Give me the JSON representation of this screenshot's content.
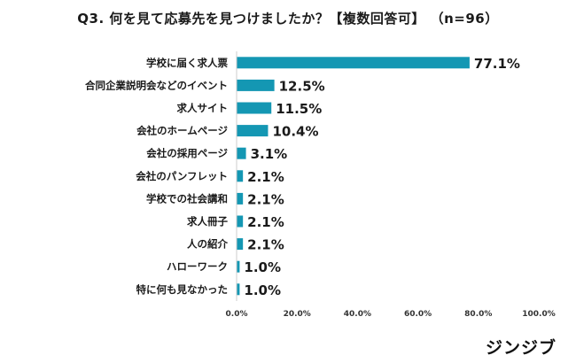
{
  "chart_data": {
    "type": "bar",
    "orientation": "horizontal",
    "title": "Q3. 何を見て応募先を見つけましたか？【複数回答可】 （n=96）",
    "categories": [
      "学校に届く求人票",
      "合同企業説明会などのイベント",
      "求人サイト",
      "会社のホームページ",
      "会社の採用ページ",
      "会社のパンフレット",
      "学校での社会講和",
      "求人冊子",
      "人の紹介",
      "ハローワーク",
      "特に何も見なかった"
    ],
    "values": [
      77.1,
      12.5,
      11.5,
      10.4,
      3.1,
      2.1,
      2.1,
      2.1,
      2.1,
      1.0,
      1.0
    ],
    "value_labels": [
      "77.1%",
      "12.5%",
      "11.5%",
      "10.4%",
      "3.1%",
      "2.1%",
      "2.1%",
      "2.1%",
      "2.1%",
      "1.0%",
      "1.0%"
    ],
    "xlim": [
      0,
      100
    ],
    "x_ticks": [
      "0.0%",
      "20.0%",
      "40.0%",
      "60.0%",
      "80.0%",
      "100.0%"
    ],
    "grid": false,
    "bar_color": "#1497b3"
  },
  "brand": "ジンジブ"
}
